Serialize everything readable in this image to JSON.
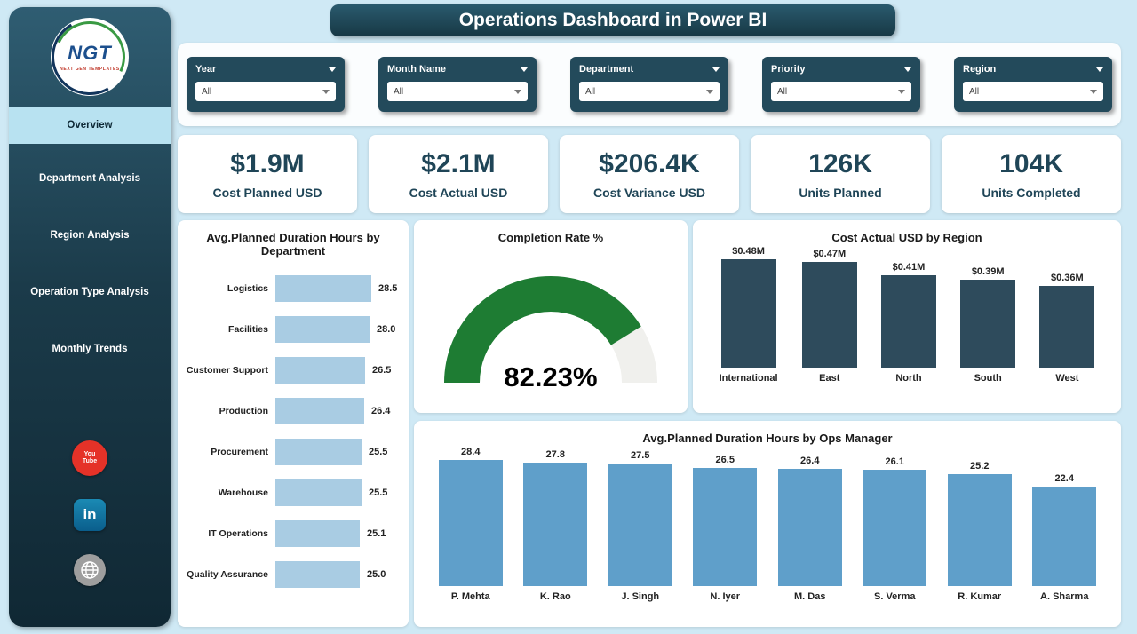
{
  "title": "Operations Dashboard in Power BI",
  "sidebar": {
    "logo_text": "NGT",
    "logo_sub": "NEXT GEN TEMPLATES",
    "items": [
      {
        "label": "Overview",
        "active": true
      },
      {
        "label": "Department Analysis",
        "active": false
      },
      {
        "label": "Region Analysis",
        "active": false
      },
      {
        "label": "Operation Type Analysis",
        "active": false
      },
      {
        "label": "Monthly Trends",
        "active": false
      }
    ],
    "social": [
      {
        "icon": "youtube-icon",
        "text": "You Tube"
      },
      {
        "icon": "linkedin-icon",
        "text": "in"
      },
      {
        "icon": "globe-icon",
        "text": ""
      }
    ]
  },
  "filters": [
    {
      "label": "Year",
      "value": "All"
    },
    {
      "label": "Month Name",
      "value": "All"
    },
    {
      "label": "Department",
      "value": "All"
    },
    {
      "label": "Priority",
      "value": "All"
    },
    {
      "label": "Region",
      "value": "All"
    }
  ],
  "kpis": [
    {
      "value": "$1.9M",
      "label": "Cost Planned USD"
    },
    {
      "value": "$2.1M",
      "label": "Cost Actual USD"
    },
    {
      "value": "$206.4K",
      "label": "Cost Variance USD"
    },
    {
      "value": "126K",
      "label": "Units Planned"
    },
    {
      "value": "104K",
      "label": "Units Completed"
    }
  ],
  "colors": {
    "background": "#cfe9f5",
    "sidebar_dark": "#1b3b4a",
    "card_dark": "#234a5b",
    "kpi_text": "#1f4557",
    "dept_bar": "#a9cce3",
    "region_bar": "#2e4b5c",
    "ops_bar": "#5f9fca",
    "gauge_green": "#1e7c33",
    "gauge_track": "#f0f0ed"
  },
  "chart_data": [
    {
      "type": "bar",
      "orientation": "horizontal",
      "title": "Avg.Planned Duration Hours by Department",
      "categories": [
        "Logistics",
        "Facilities",
        "Customer Support",
        "Production",
        "Procurement",
        "Warehouse",
        "IT Operations",
        "Quality Assurance"
      ],
      "values": [
        28.5,
        28.0,
        26.5,
        26.4,
        25.5,
        25.5,
        25.1,
        25.0
      ],
      "labels": [
        "28.5",
        "28.0",
        "26.5",
        "26.4",
        "25.5",
        "25.5",
        "25.1",
        "25.0"
      ],
      "bar_color": "#a9cce3",
      "xlim": [
        0,
        30
      ]
    },
    {
      "type": "gauge",
      "title": "Completion Rate %",
      "value": 82.23,
      "display": "82.23%",
      "min": 0,
      "max": 100,
      "color": "#1e7c33",
      "track_color": "#f0f0ed"
    },
    {
      "type": "bar",
      "orientation": "vertical",
      "title": "Cost Actual USD by Region",
      "categories": [
        "International",
        "East",
        "North",
        "South",
        "West"
      ],
      "values": [
        0.48,
        0.47,
        0.41,
        0.39,
        0.36
      ],
      "labels": [
        "$0.48M",
        "$0.47M",
        "$0.41M",
        "$0.39M",
        "$0.36M"
      ],
      "bar_color": "#2e4b5c",
      "ylim": [
        0,
        0.5
      ]
    },
    {
      "type": "bar",
      "orientation": "vertical",
      "title": "Avg.Planned Duration Hours by Ops Manager",
      "categories": [
        "P. Mehta",
        "K. Rao",
        "J. Singh",
        "N. Iyer",
        "M. Das",
        "S. Verma",
        "R. Kumar",
        "A. Sharma"
      ],
      "values": [
        28.4,
        27.8,
        27.5,
        26.5,
        26.4,
        26.1,
        25.2,
        22.4
      ],
      "labels": [
        "28.4",
        "27.8",
        "27.5",
        "26.5",
        "26.4",
        "26.1",
        "25.2",
        "22.4"
      ],
      "bar_color": "#5f9fca",
      "ylim": [
        0,
        30
      ]
    }
  ]
}
